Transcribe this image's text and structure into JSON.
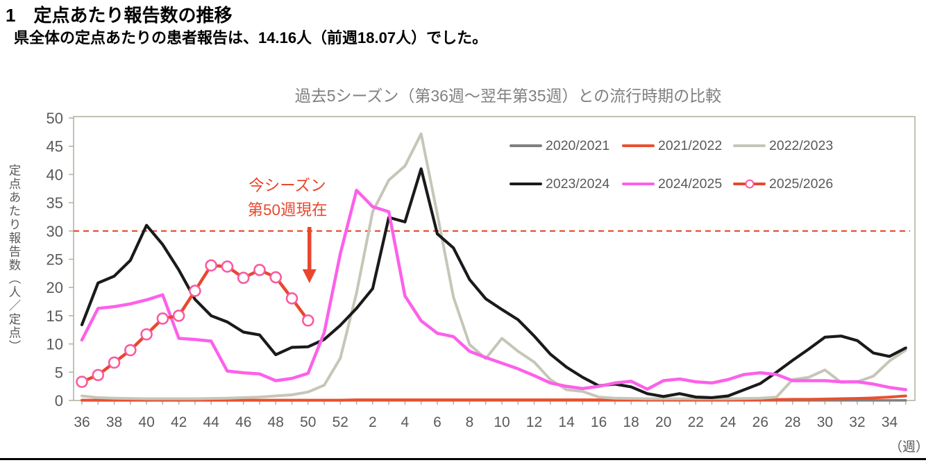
{
  "header": {
    "heading": "1　定点あたり報告数の推移",
    "subtitle": "県全体の定点あたりの患者報告は、14.16人（前週18.07人）でした。"
  },
  "chart_data": {
    "type": "line",
    "title": "過去5シーズン（第36週～翌年第35週）との流行時期の比較",
    "xlabel": "（週）",
    "ylabel": "定点あたり報告数（人／定点）",
    "ylim": [
      0,
      50
    ],
    "y_tick_step": 5,
    "x_tick_labels_every": 2,
    "legend_position": "top-right",
    "grid": false,
    "x_categories": [
      "36",
      "37",
      "38",
      "39",
      "40",
      "41",
      "42",
      "43",
      "44",
      "45",
      "46",
      "47",
      "48",
      "49",
      "50",
      "51",
      "52",
      "1",
      "2",
      "3",
      "4",
      "5",
      "6",
      "7",
      "8",
      "9",
      "10",
      "11",
      "12",
      "13",
      "14",
      "15",
      "16",
      "17",
      "18",
      "19",
      "20",
      "21",
      "22",
      "23",
      "24",
      "25",
      "26",
      "27",
      "28",
      "29",
      "30",
      "31",
      "32",
      "33",
      "34",
      "35"
    ],
    "threshold_line": {
      "value": 30,
      "style": "dashed",
      "color": "#e8472e"
    },
    "annotation": {
      "text_line1": "今シーズン",
      "text_line2": "第50週現在",
      "arrow_points_to_week": "50",
      "color": "#e8472e"
    },
    "current_week_value": 14.16,
    "previous_week_value": 18.07,
    "series": [
      {
        "name": "2020/2021",
        "color": "#7f7f7f",
        "marker": null,
        "values": [
          0.02,
          0.02,
          0.02,
          0.02,
          0.02,
          0.02,
          0.02,
          0.02,
          0.02,
          0.02,
          0.02,
          0.02,
          0.02,
          0.02,
          0.02,
          0.02,
          0.02,
          0.02,
          0.02,
          0.02,
          0.02,
          0.02,
          0.02,
          0.02,
          0.02,
          0.02,
          0.02,
          0.02,
          0.02,
          0.02,
          0.02,
          0.02,
          0.02,
          0.02,
          0.02,
          0.02,
          0.02,
          0.02,
          0.02,
          0.02,
          0.02,
          0.02,
          0.02,
          0.02,
          0.02,
          0.02,
          0.02,
          0.02,
          0.02,
          0.02,
          0.02,
          0.02
        ]
      },
      {
        "name": "2021/2022",
        "color": "#e8502f",
        "marker": null,
        "values": [
          0.05,
          0.05,
          0.05,
          0.05,
          0.05,
          0.05,
          0.05,
          0.05,
          0.05,
          0.05,
          0.05,
          0.05,
          0.05,
          0.05,
          0.05,
          0.05,
          0.05,
          0.1,
          0.1,
          0.1,
          0.1,
          0.1,
          0.1,
          0.1,
          0.1,
          0.1,
          0.1,
          0.1,
          0.1,
          0.1,
          0.1,
          0.1,
          0.1,
          0.1,
          0.1,
          0.1,
          0.1,
          0.1,
          0.1,
          0.1,
          0.1,
          0.1,
          0.15,
          0.15,
          0.2,
          0.2,
          0.25,
          0.3,
          0.35,
          0.45,
          0.6,
          0.8
        ]
      },
      {
        "name": "2022/2023",
        "color": "#c6c6b8",
        "marker": null,
        "values": [
          0.8,
          0.5,
          0.4,
          0.35,
          0.3,
          0.3,
          0.3,
          0.3,
          0.35,
          0.4,
          0.5,
          0.6,
          0.8,
          1.0,
          1.5,
          2.7,
          7.5,
          19.0,
          33.4,
          39.0,
          41.5,
          47.2,
          33.0,
          18.3,
          9.9,
          7.4,
          11.0,
          8.7,
          6.8,
          3.7,
          1.9,
          1.6,
          0.6,
          0.4,
          0.35,
          0.3,
          0.3,
          0.3,
          0.3,
          0.3,
          0.3,
          0.35,
          0.4,
          0.6,
          3.7,
          4.1,
          5.4,
          3.2,
          3.3,
          4.3,
          7.0,
          8.9
        ]
      },
      {
        "name": "2023/2024",
        "color": "#1a1a1a",
        "marker": null,
        "values": [
          13.4,
          20.8,
          22.0,
          24.8,
          31.0,
          27.6,
          23.1,
          17.9,
          15.0,
          13.9,
          12.1,
          11.6,
          8.1,
          9.4,
          9.5,
          10.8,
          13.3,
          16.3,
          19.8,
          32.4,
          31.6,
          41.0,
          29.5,
          27.0,
          21.4,
          18.0,
          16.1,
          14.3,
          11.4,
          8.2,
          5.9,
          4.1,
          2.6,
          2.9,
          2.4,
          1.2,
          0.7,
          1.2,
          0.6,
          0.5,
          0.8,
          1.9,
          3.0,
          5.0,
          7.1,
          9.1,
          11.2,
          11.4,
          10.6,
          8.4,
          7.8,
          9.3
        ]
      },
      {
        "name": "2024/2025",
        "color": "#fc60ea",
        "marker": null,
        "values": [
          10.7,
          16.3,
          16.6,
          17.1,
          17.8,
          18.7,
          11.0,
          10.8,
          10.5,
          5.2,
          4.9,
          4.7,
          3.5,
          3.9,
          4.8,
          12.0,
          26.0,
          37.2,
          34.3,
          33.4,
          18.5,
          14.1,
          11.9,
          11.3,
          8.7,
          7.6,
          6.6,
          5.6,
          4.4,
          3.1,
          2.5,
          2.1,
          2.5,
          3.1,
          3.4,
          2.0,
          3.5,
          3.8,
          3.3,
          3.1,
          3.7,
          4.6,
          4.9,
          4.6,
          3.5,
          3.5,
          3.5,
          3.3,
          3.3,
          2.9,
          2.3,
          1.9
        ]
      },
      {
        "name": "2025/2026",
        "color": "#e8472e",
        "marker": {
          "shape": "circle",
          "fill": "#ffffff",
          "stroke": "#fa5aa0"
        },
        "values": [
          3.3,
          4.5,
          6.7,
          8.9,
          11.7,
          14.5,
          15.0,
          19.4,
          23.9,
          23.7,
          21.7,
          23.1,
          21.8,
          18.07,
          14.16
        ]
      }
    ]
  }
}
